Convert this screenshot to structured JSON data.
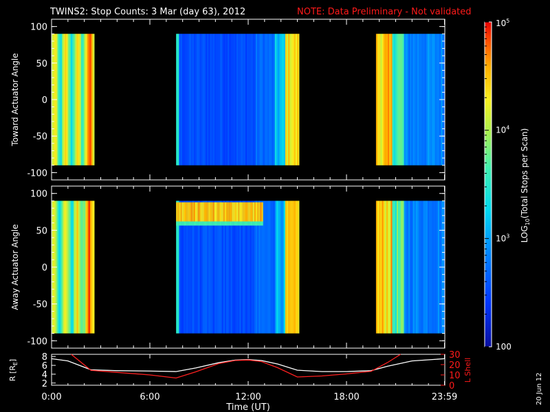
{
  "header": {
    "title": "TWINS2: Stop Counts:  3 Mar (day  63), 2012",
    "note": "NOTE: Data Preliminary - Not validated"
  },
  "footer": {
    "date_stamp": "20 Jun 12"
  },
  "colors": {
    "background": "#000000",
    "axes": "#ffffff",
    "note": "#ff1a1a",
    "r_line": "#ffffff",
    "l_shell_line": "#ff2020"
  },
  "chart_data": [
    {
      "type": "heatmap",
      "id": "toward",
      "ylabel": "Toward Actuator Angle",
      "ylim": [
        -110,
        110
      ],
      "yticks": [
        100,
        50,
        0,
        -50,
        -100
      ],
      "data_ylim": [
        -90,
        90
      ],
      "x_range_hours": [
        0,
        24
      ],
      "data_blocks_hours": [
        [
          0.0,
          2.6
        ],
        [
          7.6,
          15.1
        ],
        [
          19.8,
          23.98
        ]
      ],
      "high_band": null
    },
    {
      "type": "heatmap",
      "id": "away",
      "ylabel": "Away Actuator Angle",
      "ylim": [
        -110,
        110
      ],
      "yticks": [
        100,
        50,
        0,
        -50,
        -100
      ],
      "data_ylim": [
        -90,
        90
      ],
      "x_range_hours": [
        0,
        24
      ],
      "data_blocks_hours": [
        [
          0.0,
          2.6
        ],
        [
          7.6,
          15.1
        ],
        [
          19.8,
          23.98
        ]
      ],
      "high_band": {
        "hours": [
          7.6,
          12.9
        ],
        "angle": [
          62,
          88
        ]
      }
    },
    {
      "type": "line",
      "id": "ephemeris",
      "xlabel": "Time (UT)",
      "xtick_labels": [
        "0:00",
        "6:00",
        "12:00",
        "18:00",
        "23:59"
      ],
      "xtick_hours": [
        0,
        6,
        12,
        18,
        23.98
      ],
      "left_axis": {
        "label": "R [R",
        "label_sub": "E",
        "label_end": "]",
        "ylim": [
          1.5,
          8.5
        ],
        "ticks": [
          2,
          4,
          6,
          8
        ]
      },
      "right_axis": {
        "label": "L Shell",
        "ylim": [
          0,
          30
        ],
        "ticks": [
          0,
          10,
          20,
          30
        ]
      },
      "series": [
        {
          "name": "R",
          "axis": "left",
          "x": [
            0,
            1,
            2.4,
            4,
            6,
            7.6,
            8.8,
            10.2,
            11.2,
            12,
            12.8,
            13.8,
            15,
            16.5,
            18,
            19.5,
            20.5,
            22,
            23.98
          ],
          "values": [
            7.5,
            7.0,
            5.0,
            4.8,
            4.7,
            4.6,
            5.4,
            6.6,
            7.2,
            7.3,
            7.1,
            6.3,
            4.9,
            4.6,
            4.6,
            4.8,
            5.8,
            7.0,
            7.5
          ]
        },
        {
          "name": "L Shell",
          "axis": "right",
          "x": [
            1.2,
            2.4,
            4,
            6,
            7.6,
            8.8,
            10.2,
            11.2,
            12,
            12.8,
            13.8,
            15,
            16.5,
            18,
            19.5,
            20.5,
            21.3
          ],
          "values": [
            30,
            14.5,
            12.5,
            10,
            7,
            13,
            21,
            24,
            24.5,
            23,
            17,
            8,
            9,
            11,
            13.5,
            22,
            30
          ]
        }
      ]
    },
    {
      "type": "heatmap-colorbar",
      "id": "colorbar",
      "label_pre": "LOG",
      "label_sub": "10",
      "label_post": "(Total Stops per Scan)",
      "scale": "log",
      "range": [
        100,
        100000
      ],
      "tick_labels": [
        {
          "value": 100000,
          "base": "10",
          "exp": "5"
        },
        {
          "value": 10000,
          "base": "10",
          "exp": "4"
        },
        {
          "value": 1000,
          "base": "10",
          "exp": "3"
        },
        {
          "value": 100,
          "base": "100",
          "exp": ""
        }
      ]
    }
  ]
}
